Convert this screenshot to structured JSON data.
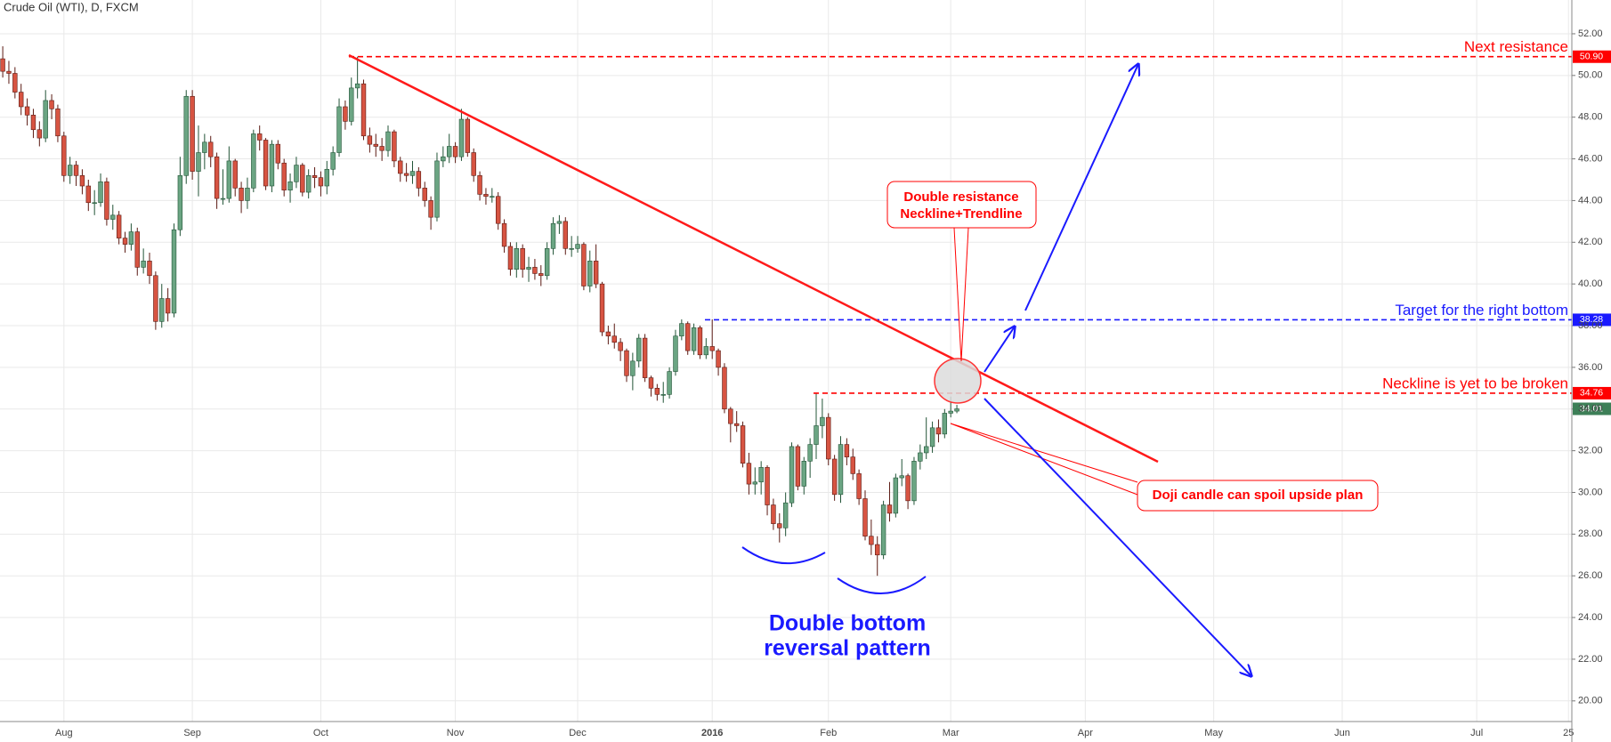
{
  "chart_data": {
    "type": "candlestick",
    "title": "Crude Oil (WTI), D, FXCM",
    "categories": [
      null,
      null,
      null,
      null,
      null,
      null,
      null,
      null,
      null,
      null,
      "Aug",
      null,
      null,
      null,
      null,
      null,
      null,
      null,
      null,
      null,
      null,
      null,
      null,
      null,
      null,
      null,
      null,
      null,
      null,
      null,
      null,
      "Sep",
      null,
      null,
      null,
      null,
      null,
      null,
      null,
      null,
      null,
      null,
      null,
      null,
      null,
      null,
      null,
      null,
      null,
      null,
      null,
      null,
      "Oct",
      null,
      null,
      null,
      null,
      null,
      null,
      null,
      null,
      null,
      null,
      null,
      null,
      null,
      null,
      null,
      null,
      null,
      null,
      null,
      null,
      null,
      "Nov",
      null,
      null,
      null,
      null,
      null,
      null,
      null,
      null,
      null,
      null,
      null,
      null,
      null,
      null,
      null,
      null,
      null,
      null,
      null,
      "Dec",
      null,
      null,
      null,
      null,
      null,
      null,
      null,
      null,
      null,
      null,
      null,
      null,
      null,
      null,
      null,
      null,
      null,
      null,
      null,
      null,
      null,
      "2016",
      null,
      null,
      null,
      null,
      null,
      null,
      null,
      null,
      null,
      null,
      null,
      null,
      null,
      null,
      null,
      null,
      null,
      null,
      "Feb",
      null,
      null,
      null,
      null,
      null,
      null,
      null,
      null,
      null,
      null,
      null,
      null,
      null,
      null,
      null,
      null,
      null,
      null,
      null,
      "Mar",
      null,
      null,
      null,
      null,
      null,
      null,
      null,
      null,
      null,
      null,
      null,
      null,
      null,
      null,
      null,
      null,
      null,
      null,
      null,
      null,
      null,
      "Apr",
      null,
      null,
      null,
      null,
      null,
      null,
      null,
      null,
      null,
      null,
      null,
      null,
      null,
      null,
      null,
      null,
      null,
      null,
      null,
      null,
      "May",
      null,
      null,
      null,
      null,
      null,
      null,
      null,
      null,
      null,
      null,
      null,
      null,
      null,
      null,
      null,
      null,
      null,
      null,
      null,
      null,
      "Jun",
      null,
      null,
      null,
      null,
      null,
      null,
      null,
      null,
      null,
      null,
      null,
      null,
      null,
      null,
      null,
      null,
      null,
      null,
      null,
      null,
      null,
      "Jul",
      null,
      null,
      null,
      null,
      null,
      null,
      null,
      null,
      null,
      null,
      null,
      null,
      null,
      null,
      "25"
    ],
    "open": [
      50.8,
      50.2,
      50.1,
      49.2,
      48.5,
      48.1,
      47.4,
      47.0,
      48.8,
      48.4,
      47.1,
      45.2,
      45.7,
      45.2,
      44.7,
      43.9,
      43.9,
      44.9,
      43.1,
      43.3,
      42.2,
      41.9,
      42.5,
      40.8,
      41.1,
      40.4,
      38.2,
      39.3,
      38.6,
      42.6,
      45.2,
      49.0,
      45.4,
      46.3,
      46.8,
      46.1,
      44.1,
      44.1,
      45.9,
      44.6,
      44.0,
      44.6,
      47.2,
      46.9,
      44.7,
      46.7,
      45.8,
      44.5,
      44.9,
      45.7,
      44.4,
      45.2,
      45.1,
      44.7,
      45.5,
      46.3,
      48.5,
      47.8,
      49.4,
      49.6,
      47.1,
      46.7,
      46.6,
      46.4,
      47.3,
      45.9,
      45.3,
      45.2,
      45.4,
      44.6,
      44.0,
      43.2,
      45.9,
      46.1,
      46.6,
      46.1,
      47.9,
      46.3,
      45.2,
      44.3,
      44.2,
      44.2,
      42.9,
      41.8,
      40.7,
      41.7,
      40.7,
      40.8,
      40.5,
      40.4,
      41.7,
      42.9,
      43.0,
      41.7,
      41.7,
      41.9,
      39.9,
      41.1,
      40.0,
      37.7,
      37.5,
      37.2,
      36.8,
      35.6,
      36.3,
      37.4,
      35.5,
      35.0,
      34.7,
      34.7,
      35.8,
      37.5,
      38.1,
      36.8,
      37.9,
      36.6,
      37.0,
      36.8,
      36.0,
      34.0,
      33.3,
      33.2,
      31.4,
      30.4,
      30.5,
      31.2,
      29.4,
      28.5,
      28.3,
      29.5,
      32.2,
      30.3,
      31.5,
      32.3,
      33.2,
      33.6,
      31.6,
      29.9,
      32.3,
      31.7,
      30.9,
      29.7,
      27.9,
      27.5,
      27.0,
      29.4,
      29.0,
      30.7,
      30.8,
      29.6,
      31.5,
      31.9,
      32.2,
      33.1,
      32.8,
      33.8,
      33.9,
      null,
      null,
      null,
      null,
      null,
      null,
      null,
      null,
      null,
      null,
      null,
      null,
      null,
      null,
      null,
      null,
      null,
      null,
      null,
      null,
      null,
      null,
      null,
      null,
      null,
      null,
      null,
      null,
      null,
      null,
      null,
      null,
      null,
      null,
      null,
      null,
      null,
      null,
      null,
      null,
      null,
      null,
      null,
      null,
      null,
      null,
      null,
      null,
      null,
      null,
      null,
      null,
      null,
      null,
      null,
      null,
      null,
      null,
      null,
      null,
      null,
      null,
      null,
      null,
      null,
      null,
      null,
      null,
      null,
      null,
      null,
      null,
      null,
      null,
      null,
      null,
      null,
      null,
      null,
      null,
      null,
      null,
      null,
      null,
      null,
      null,
      null,
      null,
      null,
      null,
      null,
      null,
      null,
      null,
      null,
      null,
      null,
      null,
      null,
      null
    ],
    "high": [
      51.4,
      50.7,
      50.4,
      49.6,
      48.9,
      48.4,
      47.8,
      49.3,
      49.1,
      48.6,
      47.3,
      46.1,
      45.9,
      45.5,
      45.0,
      44.5,
      45.3,
      45.1,
      43.8,
      43.5,
      42.5,
      42.9,
      42.7,
      41.7,
      41.5,
      40.6,
      40.0,
      39.8,
      42.9,
      46.1,
      49.3,
      49.3,
      47.6,
      47.2,
      47.1,
      46.3,
      45.5,
      46.6,
      46.0,
      44.9,
      45.1,
      47.4,
      47.6,
      47.0,
      46.9,
      46.9,
      46.0,
      45.3,
      46.1,
      45.8,
      45.5,
      45.6,
      45.4,
      45.9,
      46.6,
      48.9,
      48.8,
      49.9,
      50.9,
      49.8,
      47.5,
      47.2,
      47.0,
      47.6,
      47.4,
      46.1,
      45.8,
      45.9,
      45.6,
      44.9,
      44.2,
      46.3,
      46.6,
      47.2,
      46.8,
      48.4,
      48.0,
      46.5,
      45.4,
      44.6,
      44.6,
      44.4,
      43.1,
      42.0,
      42.0,
      41.9,
      41.3,
      41.2,
      40.9,
      42.0,
      43.2,
      43.3,
      43.2,
      42.3,
      42.3,
      42.0,
      41.6,
      41.9,
      40.1,
      38.0,
      38.1,
      37.4,
      36.9,
      36.7,
      37.6,
      37.6,
      35.6,
      35.2,
      35.3,
      36.0,
      37.8,
      38.3,
      38.2,
      38.1,
      38.0,
      37.4,
      38.3,
      36.9,
      36.2,
      34.1,
      33.9,
      33.4,
      31.9,
      31.2,
      31.5,
      31.3,
      29.7,
      29.0,
      30.0,
      32.4,
      32.3,
      31.7,
      32.6,
      34.76,
      34.5,
      33.8,
      31.8,
      32.7,
      32.6,
      32.1,
      31.1,
      30.1,
      28.7,
      27.9,
      29.6,
      30.5,
      30.9,
      31.6,
      30.9,
      31.7,
      32.3,
      33.6,
      33.4,
      33.5,
      34.0,
      34.6,
      34.2,
      null,
      null,
      null,
      null,
      null,
      null,
      null,
      null,
      null,
      null,
      null,
      null,
      null,
      null,
      null,
      null,
      null,
      null,
      null,
      null,
      null,
      null,
      null,
      null,
      null,
      null,
      null,
      null,
      null,
      null,
      null,
      null,
      null,
      null,
      null,
      null,
      null,
      null,
      null,
      null,
      null,
      null,
      null,
      null,
      null,
      null,
      null,
      null,
      null,
      null,
      null,
      null,
      null,
      null,
      null,
      null,
      null,
      null,
      null,
      null,
      null,
      null,
      null,
      null,
      null,
      null,
      null,
      null,
      null,
      null,
      null,
      null,
      null,
      null,
      null,
      null,
      null,
      null,
      null,
      null,
      null,
      null,
      null,
      null,
      null,
      null,
      null,
      null,
      null,
      null,
      null,
      null,
      null,
      null,
      null,
      null,
      null,
      null,
      null,
      null
    ],
    "low": [
      49.9,
      49.6,
      48.9,
      48.1,
      47.6,
      47.0,
      46.6,
      46.8,
      47.9,
      46.8,
      44.9,
      44.8,
      44.7,
      44.3,
      43.5,
      43.3,
      43.7,
      42.8,
      42.6,
      41.9,
      41.5,
      41.6,
      40.4,
      40.5,
      40.0,
      37.8,
      37.9,
      38.2,
      38.4,
      42.3,
      44.8,
      45.0,
      44.2,
      45.5,
      45.6,
      43.6,
      43.8,
      43.9,
      44.2,
      43.4,
      43.6,
      44.4,
      46.4,
      44.5,
      44.4,
      45.5,
      44.2,
      43.9,
      44.6,
      44.2,
      44.1,
      44.6,
      44.2,
      44.3,
      45.2,
      46.1,
      47.4,
      47.6,
      48.9,
      46.9,
      46.3,
      46.1,
      45.9,
      46.1,
      45.6,
      44.9,
      44.9,
      44.8,
      44.2,
      43.7,
      42.6,
      43.0,
      45.6,
      45.8,
      45.8,
      45.9,
      46.1,
      44.9,
      44.0,
      43.8,
      43.9,
      42.6,
      41.5,
      40.4,
      40.3,
      40.3,
      40.1,
      40.2,
      39.9,
      40.2,
      41.4,
      42.4,
      41.4,
      41.3,
      41.5,
      39.7,
      39.6,
      39.8,
      37.5,
      37.1,
      36.9,
      36.3,
      35.3,
      34.9,
      36.0,
      35.3,
      34.6,
      34.4,
      34.3,
      34.5,
      35.6,
      37.3,
      36.6,
      36.6,
      36.4,
      36.4,
      36.4,
      35.6,
      33.8,
      32.4,
      32.9,
      31.2,
      29.9,
      29.9,
      29.9,
      28.9,
      28.2,
      27.6,
      27.9,
      29.3,
      30.1,
      29.9,
      30.7,
      31.6,
      32.6,
      31.3,
      29.6,
      29.5,
      31.3,
      30.6,
      29.4,
      27.7,
      27.0,
      26.0,
      26.8,
      28.6,
      28.8,
      30.3,
      29.2,
      29.4,
      31.1,
      31.6,
      31.9,
      32.4,
      32.6,
      33.6,
      33.8,
      null,
      null,
      null,
      null,
      null,
      null,
      null,
      null,
      null,
      null,
      null,
      null,
      null,
      null,
      null,
      null,
      null,
      null,
      null,
      null,
      null,
      null,
      null,
      null,
      null,
      null,
      null,
      null,
      null,
      null,
      null,
      null,
      null,
      null,
      null,
      null,
      null,
      null,
      null,
      null,
      null,
      null,
      null,
      null,
      null,
      null,
      null,
      null,
      null,
      null,
      null,
      null,
      null,
      null,
      null,
      null,
      null,
      null,
      null,
      null,
      null,
      null,
      null,
      null,
      null,
      null,
      null,
      null,
      null,
      null,
      null,
      null,
      null,
      null,
      null,
      null,
      null,
      null,
      null,
      null,
      null,
      null,
      null,
      null,
      null,
      null,
      null,
      null,
      null,
      null,
      null,
      null,
      null,
      null,
      null,
      null,
      null,
      null,
      null,
      null
    ],
    "close": [
      50.2,
      50.1,
      49.2,
      48.5,
      48.1,
      47.4,
      47.0,
      48.8,
      48.4,
      47.1,
      45.2,
      45.7,
      45.2,
      44.7,
      43.9,
      43.9,
      44.9,
      43.1,
      43.3,
      42.2,
      41.9,
      42.5,
      40.8,
      41.1,
      40.4,
      38.2,
      39.3,
      38.6,
      42.6,
      45.2,
      49.0,
      45.4,
      46.3,
      46.8,
      46.1,
      44.1,
      44.1,
      45.9,
      44.6,
      44.0,
      44.6,
      47.2,
      46.9,
      44.7,
      46.7,
      45.8,
      44.5,
      44.9,
      45.7,
      44.4,
      45.2,
      45.1,
      44.7,
      45.5,
      46.3,
      48.5,
      47.8,
      49.4,
      49.6,
      47.1,
      46.7,
      46.6,
      46.4,
      47.3,
      45.9,
      45.3,
      45.2,
      45.4,
      44.6,
      44.0,
      43.2,
      45.9,
      46.1,
      46.6,
      46.1,
      47.9,
      46.3,
      45.2,
      44.3,
      44.2,
      44.2,
      42.9,
      41.8,
      40.7,
      41.7,
      40.7,
      40.8,
      40.5,
      40.4,
      41.7,
      42.9,
      43.0,
      41.7,
      41.7,
      41.9,
      39.9,
      41.1,
      40.0,
      37.7,
      37.5,
      37.2,
      36.8,
      35.6,
      36.3,
      37.4,
      35.5,
      35.0,
      34.7,
      34.7,
      35.8,
      37.5,
      38.1,
      36.8,
      37.9,
      36.6,
      37.0,
      36.8,
      36.0,
      34.0,
      33.3,
      33.2,
      31.4,
      30.4,
      30.5,
      31.2,
      29.4,
      28.5,
      28.3,
      29.5,
      32.2,
      30.3,
      31.5,
      32.3,
      33.2,
      33.6,
      31.6,
      29.9,
      32.3,
      31.7,
      30.9,
      29.7,
      27.9,
      27.5,
      27.0,
      29.4,
      29.0,
      30.7,
      30.8,
      29.6,
      31.5,
      31.9,
      32.2,
      33.1,
      32.8,
      33.8,
      33.9,
      34.01,
      null,
      null,
      null,
      null,
      null,
      null,
      null,
      null,
      null,
      null,
      null,
      null,
      null,
      null,
      null,
      null,
      null,
      null,
      null,
      null,
      null,
      null,
      null,
      null,
      null,
      null,
      null,
      null,
      null,
      null,
      null,
      null,
      null,
      null,
      null,
      null,
      null,
      null,
      null,
      null,
      null,
      null,
      null,
      null,
      null,
      null,
      null,
      null,
      null,
      null,
      null,
      null,
      null,
      null,
      null,
      null,
      null,
      null,
      null,
      null,
      null,
      null,
      null,
      null,
      null,
      null,
      null,
      null,
      null,
      null,
      null,
      null,
      null,
      null,
      null,
      null,
      null,
      null,
      null,
      null,
      null,
      null,
      null,
      null,
      null,
      null,
      null,
      null,
      null,
      null,
      null,
      null,
      null,
      null,
      null,
      null,
      null,
      null,
      null,
      null
    ],
    "up_color": "#6ba583",
    "down_color": "#d75442",
    "up_wick_color": "#225437",
    "down_wick_color": "#5b1a13",
    "ylim": [
      19.01,
      53.62
    ],
    "yticks": [
      {
        "value": 20,
        "label": "20.00"
      },
      {
        "value": 22,
        "label": "22.00"
      },
      {
        "value": 24,
        "label": "24.00"
      },
      {
        "value": 26,
        "label": "26.00"
      },
      {
        "value": 28,
        "label": "28.00"
      },
      {
        "value": 30,
        "label": "30.00"
      },
      {
        "value": 32,
        "label": "32.00"
      },
      {
        "value": 34,
        "label": "34.00"
      },
      {
        "value": 36,
        "label": "36.00"
      },
      {
        "value": 38,
        "label": "38.00"
      },
      {
        "value": 40,
        "label": "40.00"
      },
      {
        "value": 42,
        "label": "42.00"
      },
      {
        "value": 44,
        "label": "44.00"
      },
      {
        "value": 46,
        "label": "46.00"
      },
      {
        "value": 48,
        "label": "48.00"
      },
      {
        "value": 50,
        "label": "50.00"
      },
      {
        "value": 52,
        "label": "52.00"
      }
    ],
    "grid": true,
    "levels": [
      {
        "name": "Next resistance",
        "value": 50.9,
        "value_label": "50.90",
        "color": "#ff0000"
      },
      {
        "name": "Target for the right bottom",
        "value": 38.28,
        "value_label": "38.28",
        "color": "#1a1aff"
      },
      {
        "name": "Neckline is yet to be broken",
        "value": 34.76,
        "value_label": "34.76",
        "color": "#ff0000"
      }
    ],
    "last_price": {
      "value": 34.01,
      "label": "34.01",
      "color": "#3d7f57"
    },
    "annotations": {
      "resistance_callout": [
        "Double resistance",
        "Neckline+Trendline"
      ],
      "doji_callout": "Doji candle can spoil upside plan",
      "pattern": [
        "Double bottom",
        "reversal pattern"
      ]
    }
  }
}
